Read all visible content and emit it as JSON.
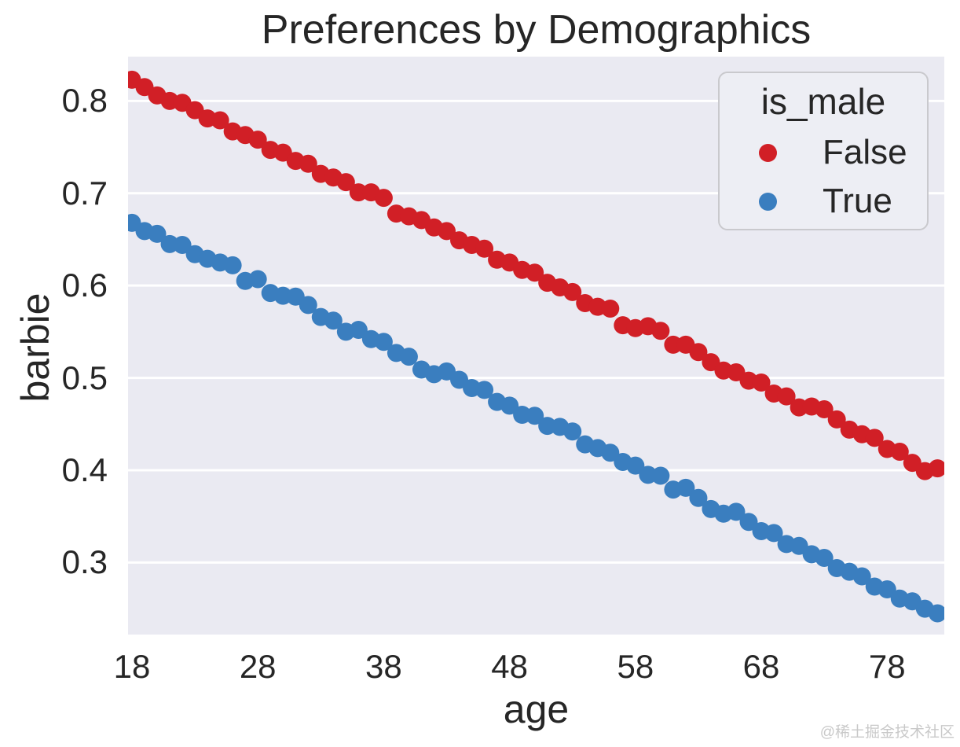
{
  "watermark": "@稀土掘金技术社区",
  "colors": {
    "false_series": "#d11f26",
    "true_series": "#3a7ebf",
    "plot_bg": "#eaeaf2",
    "grid": "#ffffff",
    "text": "#262626",
    "legend_bg": "#edeef4",
    "legend_border": "#c9c9cd",
    "watermark": "#c9c9c9"
  },
  "chart_data": {
    "type": "scatter",
    "title": "Preferences by Demographics",
    "xlabel": "age",
    "ylabel": "barbie",
    "legend_title": "is_male",
    "legend_position": "upper right",
    "grid": "horizontal-only",
    "xticks": [
      18,
      28,
      38,
      48,
      58,
      68,
      78
    ],
    "yticks": [
      0.3,
      0.4,
      0.5,
      0.6,
      0.7,
      0.8
    ],
    "xlim": [
      17.69,
      82.54
    ],
    "ylim": [
      0.222,
      0.848
    ],
    "x": [
      18,
      19,
      20,
      21,
      22,
      23,
      24,
      25,
      26,
      27,
      28,
      29,
      30,
      31,
      32,
      33,
      34,
      35,
      36,
      37,
      38,
      39,
      40,
      41,
      42,
      43,
      44,
      45,
      46,
      47,
      48,
      49,
      50,
      51,
      52,
      53,
      54,
      55,
      56,
      57,
      58,
      59,
      60,
      61,
      62,
      63,
      64,
      65,
      66,
      67,
      68,
      69,
      70,
      71,
      72,
      73,
      74,
      75,
      76,
      77,
      78,
      79,
      80,
      81,
      82
    ],
    "series": [
      {
        "name": "False",
        "color": "#d11f26",
        "values": [
          0.823,
          0.815,
          0.806,
          0.8,
          0.798,
          0.79,
          0.781,
          0.779,
          0.767,
          0.763,
          0.758,
          0.747,
          0.744,
          0.735,
          0.732,
          0.721,
          0.717,
          0.712,
          0.701,
          0.701,
          0.695,
          0.678,
          0.675,
          0.671,
          0.663,
          0.659,
          0.649,
          0.644,
          0.64,
          0.628,
          0.625,
          0.617,
          0.614,
          0.603,
          0.598,
          0.593,
          0.581,
          0.577,
          0.575,
          0.557,
          0.554,
          0.556,
          0.551,
          0.536,
          0.536,
          0.528,
          0.517,
          0.508,
          0.506,
          0.497,
          0.495,
          0.483,
          0.48,
          0.468,
          0.469,
          0.466,
          0.455,
          0.444,
          0.439,
          0.435,
          0.423,
          0.42,
          0.408,
          0.399,
          0.402
        ]
      },
      {
        "name": "True",
        "color": "#3a7ebf",
        "values": [
          0.668,
          0.659,
          0.656,
          0.645,
          0.644,
          0.634,
          0.629,
          0.625,
          0.622,
          0.605,
          0.607,
          0.592,
          0.589,
          0.588,
          0.579,
          0.566,
          0.562,
          0.55,
          0.552,
          0.542,
          0.539,
          0.527,
          0.523,
          0.509,
          0.504,
          0.507,
          0.498,
          0.489,
          0.487,
          0.474,
          0.47,
          0.46,
          0.459,
          0.448,
          0.447,
          0.442,
          0.428,
          0.424,
          0.419,
          0.409,
          0.405,
          0.395,
          0.394,
          0.379,
          0.381,
          0.37,
          0.358,
          0.353,
          0.355,
          0.344,
          0.334,
          0.332,
          0.32,
          0.318,
          0.309,
          0.305,
          0.294,
          0.29,
          0.285,
          0.274,
          0.271,
          0.261,
          0.258,
          0.25,
          0.245
        ]
      }
    ]
  }
}
